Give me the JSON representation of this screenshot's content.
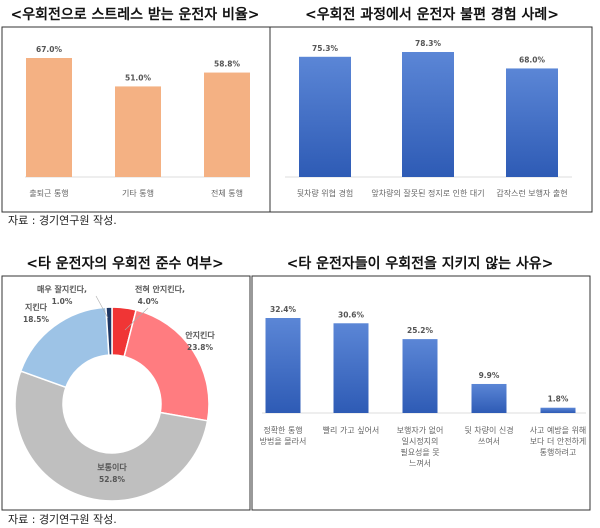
{
  "source_note": "자료 : 경기연구원 작성.",
  "chart_data": [
    {
      "type": "bar",
      "title": "<우회전으로 스트레스 받는 운전자 비율>",
      "categories": [
        "출퇴근 통행",
        "기타 통행",
        "전체 통행"
      ],
      "values": [
        67.0,
        51.0,
        58.8
      ],
      "labels": [
        "67.0%",
        "51.0%",
        "58.8%"
      ],
      "color": "#f4b183",
      "grid": false
    },
    {
      "type": "bar",
      "title": "<우회전 과정에서 운전자 불편 경험 사례>",
      "categories": [
        "뒷차량 위협 경험",
        "앞차량의 잘못된 정지로 인한 대기",
        "갑작스런 보행자 출현"
      ],
      "values": [
        75.3,
        78.3,
        68.0
      ],
      "labels": [
        "75.3%",
        "78.3%",
        "68.0%"
      ],
      "color": "#4472c4",
      "grid": false
    },
    {
      "type": "pie",
      "donut": true,
      "title": "<타 운전자의 우회전 준수 여부>",
      "categories": [
        "전혀 안지킨다,",
        "안지킨다",
        "보통이다",
        "지킨다",
        "매우 잘지킨다,"
      ],
      "values": [
        4.0,
        23.8,
        52.8,
        18.5,
        1.0
      ],
      "labels": [
        "4.0%",
        "23.8%",
        "52.8%",
        "18.5%",
        "1.0%"
      ],
      "colors": [
        "#f03535",
        "#ff7c80",
        "#bfbfbf",
        "#9dc3e6",
        "#1f3864"
      ]
    },
    {
      "type": "bar",
      "title": "<타 운전자들이 우회전을 지키지 않는 사유>",
      "categories": [
        [
          "정확한 통행",
          "방법을 몰라서"
        ],
        [
          "빨리 가고 싶어서"
        ],
        [
          "보행자가 없어",
          "일시정지의",
          "필요성을 못",
          "느껴서"
        ],
        [
          "뒷 차량이 신경",
          "쓰여서"
        ],
        [
          "사고 예방을 위해",
          "보다 더 안전하게",
          "통행하려고"
        ]
      ],
      "values": [
        32.4,
        30.6,
        25.2,
        9.9,
        1.8
      ],
      "labels": [
        "32.4%",
        "30.6%",
        "25.2%",
        "9.9%",
        "1.8%"
      ],
      "color": "#4472c4",
      "grid": false
    }
  ]
}
